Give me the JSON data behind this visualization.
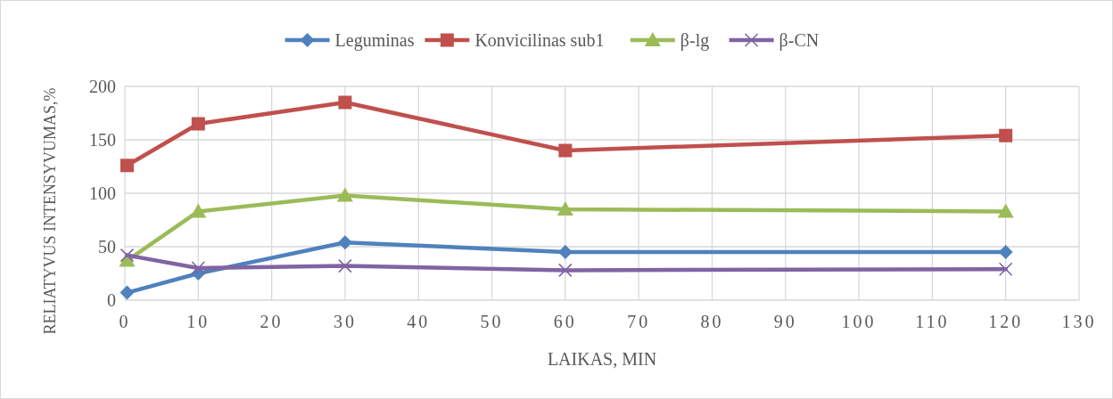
{
  "chart_data": {
    "type": "line",
    "xlabel": "LAIKAS, MIN",
    "ylabel": "RELIATYVUS INTENSYVUMAS,%",
    "x": [
      0.3,
      10,
      30,
      60,
      120
    ],
    "series": [
      {
        "name": "Leguminas",
        "color": "#4f81bd",
        "marker": "diamond",
        "values": [
          7,
          25,
          54,
          45,
          45
        ]
      },
      {
        "name": "Konvicilinas sub1",
        "color": "#c0504d",
        "marker": "square",
        "values": [
          126,
          165,
          185,
          140,
          154
        ]
      },
      {
        "name": "β-lg",
        "color": "#9bbb59",
        "marker": "triangle",
        "values": [
          37,
          83,
          98,
          85,
          83
        ]
      },
      {
        "name": "β-CN",
        "color": "#8064a2",
        "marker": "cross",
        "values": [
          42,
          30,
          32,
          28,
          29
        ]
      }
    ],
    "xlim": [
      0,
      130
    ],
    "xticks": [
      0,
      10,
      20,
      30,
      40,
      50,
      60,
      70,
      80,
      90,
      100,
      110,
      120,
      130
    ],
    "ylim": [
      0,
      200
    ],
    "yticks": [
      0,
      50,
      100,
      150,
      200
    ],
    "grid": true,
    "legend": "top"
  }
}
